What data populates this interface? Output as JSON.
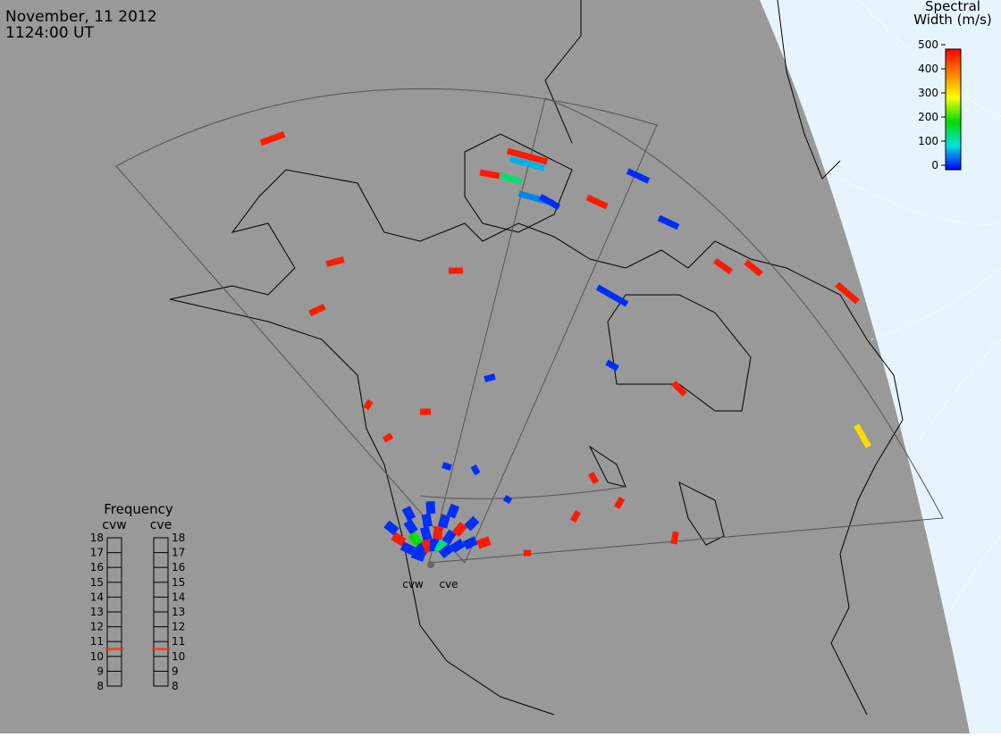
{
  "header": {
    "date": "November, 11 2012",
    "time": "1124:00 UT"
  },
  "colorbar": {
    "title_line1": "Spectral",
    "title_line2": "Width (m/s)",
    "lim": [
      0,
      500
    ],
    "ticks": [
      0,
      100,
      200,
      300,
      400,
      500
    ]
  },
  "frequency": {
    "title": "Frequency",
    "lim": [
      8,
      18
    ],
    "ticks": [
      8,
      9,
      10,
      11,
      12,
      13,
      14,
      15,
      16,
      17,
      18
    ],
    "radars": [
      {
        "name": "cvw",
        "value": 10.5
      },
      {
        "name": "cve",
        "value": 10.5
      }
    ]
  },
  "radar_labels": [
    "cvw",
    "cve"
  ],
  "echoes": {
    "spectral_width": [
      480,
      480,
      480,
      480,
      480,
      80,
      480,
      150,
      60,
      20,
      480,
      20,
      20,
      20,
      480,
      480,
      480,
      20,
      480,
      330,
      20,
      480,
      480,
      480,
      20,
      20,
      480,
      20,
      480,
      480,
      480,
      480
    ],
    "cluster_spectral_width": [
      20,
      20,
      480,
      20,
      20,
      200,
      20,
      20,
      480,
      20,
      20,
      20,
      20,
      480,
      20,
      20,
      150,
      20,
      480,
      20,
      20,
      20,
      20,
      480
    ]
  }
}
